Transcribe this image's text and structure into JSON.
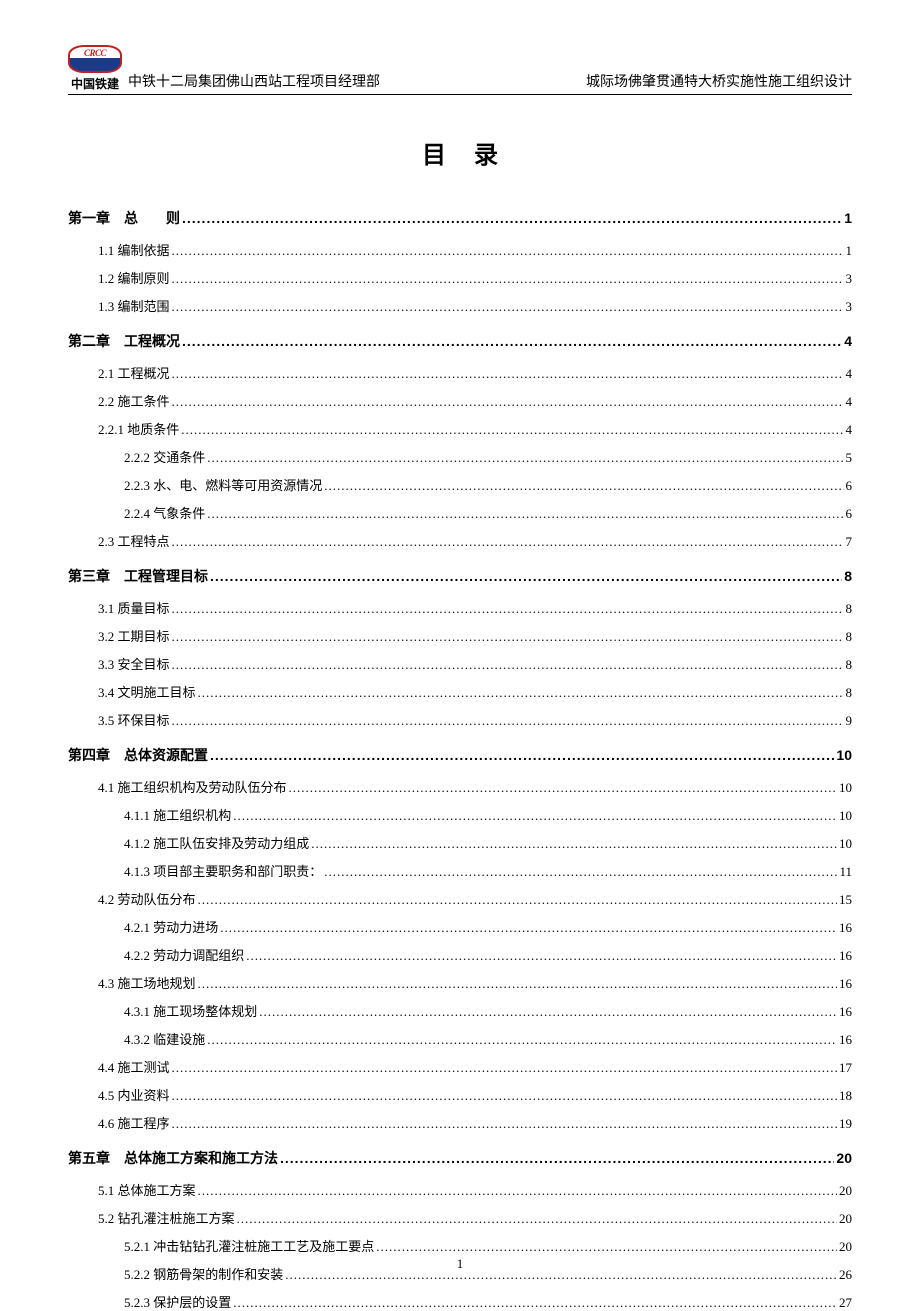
{
  "header": {
    "logo_top": "CRCC",
    "logo_bottom": "中国铁建",
    "left_text": "中铁十二局集团佛山西站工程项目经理部",
    "right_text": "城际场佛肇贯通特大桥实施性施工组织设计"
  },
  "title": "目录",
  "footer_page": "1",
  "toc": [
    {
      "type": "chapter",
      "label": "第一章　总　　则",
      "page": "1"
    },
    {
      "type": "entry",
      "indent": 1,
      "label": "1.1 编制依据",
      "page": "1"
    },
    {
      "type": "entry",
      "indent": 1,
      "label": "1.2 编制原则",
      "page": "3"
    },
    {
      "type": "entry",
      "indent": 1,
      "label": "1.3 编制范围",
      "page": "3"
    },
    {
      "type": "chapter",
      "label": "第二章　工程概况",
      "page": "4"
    },
    {
      "type": "entry",
      "indent": 1,
      "label": "2.1 工程概况",
      "page": "4"
    },
    {
      "type": "entry",
      "indent": 1,
      "label": "2.2 施工条件",
      "page": "4"
    },
    {
      "type": "entry",
      "indent": 1,
      "label": "2.2.1 地质条件",
      "page": "4"
    },
    {
      "type": "entry",
      "indent": 2,
      "label": "2.2.2 交通条件",
      "page": "5"
    },
    {
      "type": "entry",
      "indent": 2,
      "label": "2.2.3 水、电、燃料等可用资源情况",
      "page": "6"
    },
    {
      "type": "entry",
      "indent": 2,
      "label": "2.2.4 气象条件",
      "page": "6"
    },
    {
      "type": "entry",
      "indent": 1,
      "label": "2.3 工程特点",
      "page": "7"
    },
    {
      "type": "chapter",
      "label": "第三章　工程管理目标",
      "page": "8"
    },
    {
      "type": "entry",
      "indent": 1,
      "label": "3.1 质量目标",
      "page": "8"
    },
    {
      "type": "entry",
      "indent": 1,
      "label": "3.2 工期目标",
      "page": "8"
    },
    {
      "type": "entry",
      "indent": 1,
      "label": "3.3 安全目标",
      "page": "8"
    },
    {
      "type": "entry",
      "indent": 1,
      "label": "3.4 文明施工目标",
      "page": "8"
    },
    {
      "type": "entry",
      "indent": 1,
      "label": "3.5 环保目标",
      "page": "9"
    },
    {
      "type": "chapter",
      "label": "第四章　总体资源配置",
      "page": "10"
    },
    {
      "type": "entry",
      "indent": 1,
      "label": "4.1 施工组织机构及劳动队伍分布",
      "page": "10"
    },
    {
      "type": "entry",
      "indent": 2,
      "label": "4.1.1 施工组织机构",
      "page": "10"
    },
    {
      "type": "entry",
      "indent": 2,
      "label": "4.1.2 施工队伍安排及劳动力组成",
      "page": "10"
    },
    {
      "type": "entry",
      "indent": 2,
      "label": "4.1.3 项目部主要职务和部门职责：",
      "page": "11"
    },
    {
      "type": "entry",
      "indent": 1,
      "label": "4.2 劳动队伍分布",
      "page": "15"
    },
    {
      "type": "entry",
      "indent": 2,
      "label": "4.2.1 劳动力进场",
      "page": "16"
    },
    {
      "type": "entry",
      "indent": 2,
      "label": "4.2.2 劳动力调配组织",
      "page": "16"
    },
    {
      "type": "entry",
      "indent": 1,
      "label": "4.3 施工场地规划",
      "page": "16"
    },
    {
      "type": "entry",
      "indent": 2,
      "label": "4.3.1 施工现场整体规划",
      "page": "16"
    },
    {
      "type": "entry",
      "indent": 2,
      "label": "4.3.2 临建设施",
      "page": "16"
    },
    {
      "type": "entry",
      "indent": 1,
      "label": "4.4 施工测试",
      "page": "17"
    },
    {
      "type": "entry",
      "indent": 1,
      "label": "4.5 内业资料",
      "page": "18"
    },
    {
      "type": "entry",
      "indent": 1,
      "label": "4.6 施工程序",
      "page": "19"
    },
    {
      "type": "chapter",
      "label": "第五章　总体施工方案和施工方法",
      "page": "20"
    },
    {
      "type": "entry",
      "indent": 1,
      "label": "5.1 总体施工方案",
      "page": "20"
    },
    {
      "type": "entry",
      "indent": 1,
      "label": "5.2 钻孔灌注桩施工方案",
      "page": "20"
    },
    {
      "type": "entry",
      "indent": 2,
      "label": "5.2.1 冲击钻钻孔灌注桩施工工艺及施工要点",
      "page": "20"
    },
    {
      "type": "entry",
      "indent": 2,
      "label": "5.2.2 钢筋骨架的制作和安装",
      "page": "26"
    },
    {
      "type": "entry",
      "indent": 2,
      "label": "5.2.3 保护层的设置",
      "page": "27"
    }
  ]
}
